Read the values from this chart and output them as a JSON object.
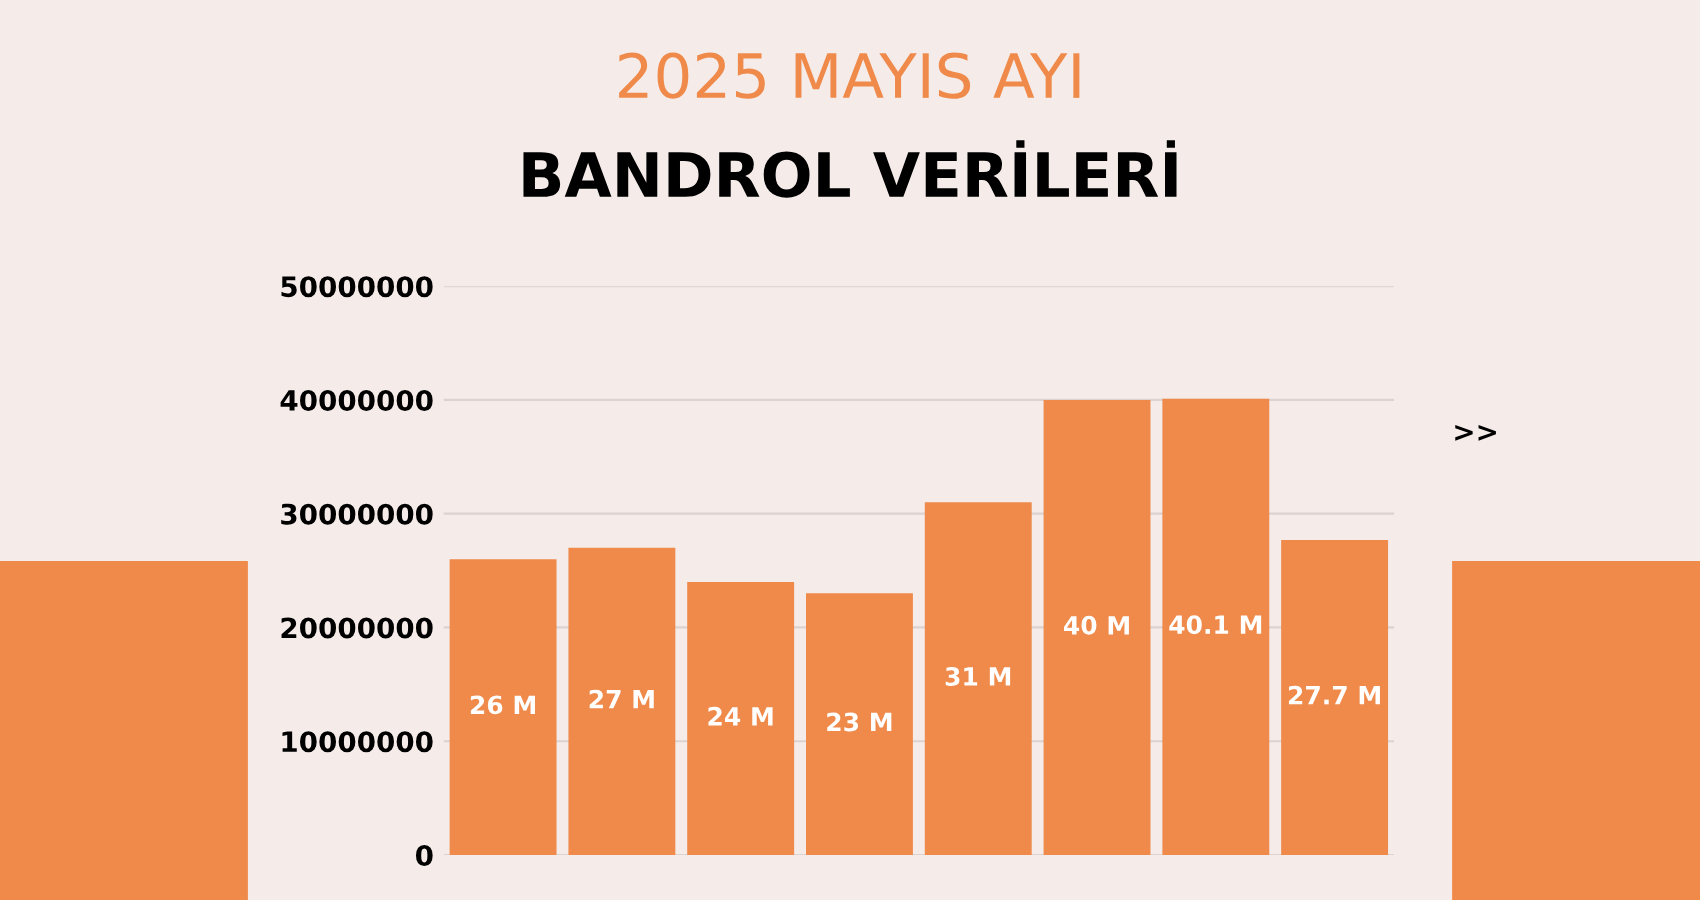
{
  "chart_data": {
    "type": "bar",
    "title": "2025 MAYIS AYI",
    "subtitle": "BANDROL VERİLERİ",
    "categories": [
      null,
      null,
      null,
      null,
      null,
      null,
      null,
      null
    ],
    "values": [
      26000000,
      27000000,
      24000000,
      23000000,
      31000000,
      40000000,
      40100000,
      27700000
    ],
    "value_labels": [
      "26 M",
      "27 M",
      "24 M",
      "23 M",
      "31 M",
      "40 M",
      "40.1 M",
      "27.7 M"
    ],
    "color": "#ef8a4b",
    "ylim": [
      0,
      50000000
    ],
    "yticks": [
      0,
      10000000,
      20000000,
      30000000,
      40000000,
      50000000
    ],
    "grid": "y",
    "annotations": [
      ">>"
    ]
  }
}
